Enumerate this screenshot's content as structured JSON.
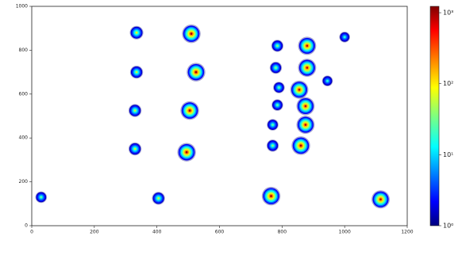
{
  "chart_data": {
    "type": "hist2d",
    "x": [
      335,
      510,
      335,
      525,
      330,
      505,
      330,
      495,
      30,
      405,
      765,
      1115,
      785,
      880,
      780,
      880,
      790,
      855,
      875,
      785,
      875,
      770,
      860,
      770,
      1000,
      945
    ],
    "y": [
      880,
      875,
      700,
      700,
      525,
      525,
      350,
      335,
      130,
      125,
      135,
      120,
      820,
      820,
      720,
      720,
      630,
      620,
      545,
      550,
      460,
      460,
      365,
      365,
      860,
      660
    ],
    "values": [
      80,
      1000,
      60,
      1000,
      60,
      1000,
      60,
      1000,
      30,
      60,
      1000,
      800,
      40,
      800,
      40,
      800,
      30,
      800,
      800,
      30,
      800,
      30,
      1000,
      40,
      20,
      20
    ],
    "xlim": [
      0,
      1200
    ],
    "xticks": [
      0,
      200,
      400,
      600,
      800,
      1000,
      1200
    ],
    "ylim": [
      0,
      1000
    ],
    "yticks": [
      0,
      200,
      400,
      600,
      800,
      1000
    ],
    "colormap": "jet",
    "log_color": true,
    "clim": [
      1,
      1230
    ],
    "cticks": [
      {
        "value": 1,
        "label": "10⁰"
      },
      {
        "value": 10,
        "label": "10¹"
      },
      {
        "value": 100,
        "label": "10²"
      },
      {
        "value": 1000,
        "label": "10³"
      }
    ]
  }
}
